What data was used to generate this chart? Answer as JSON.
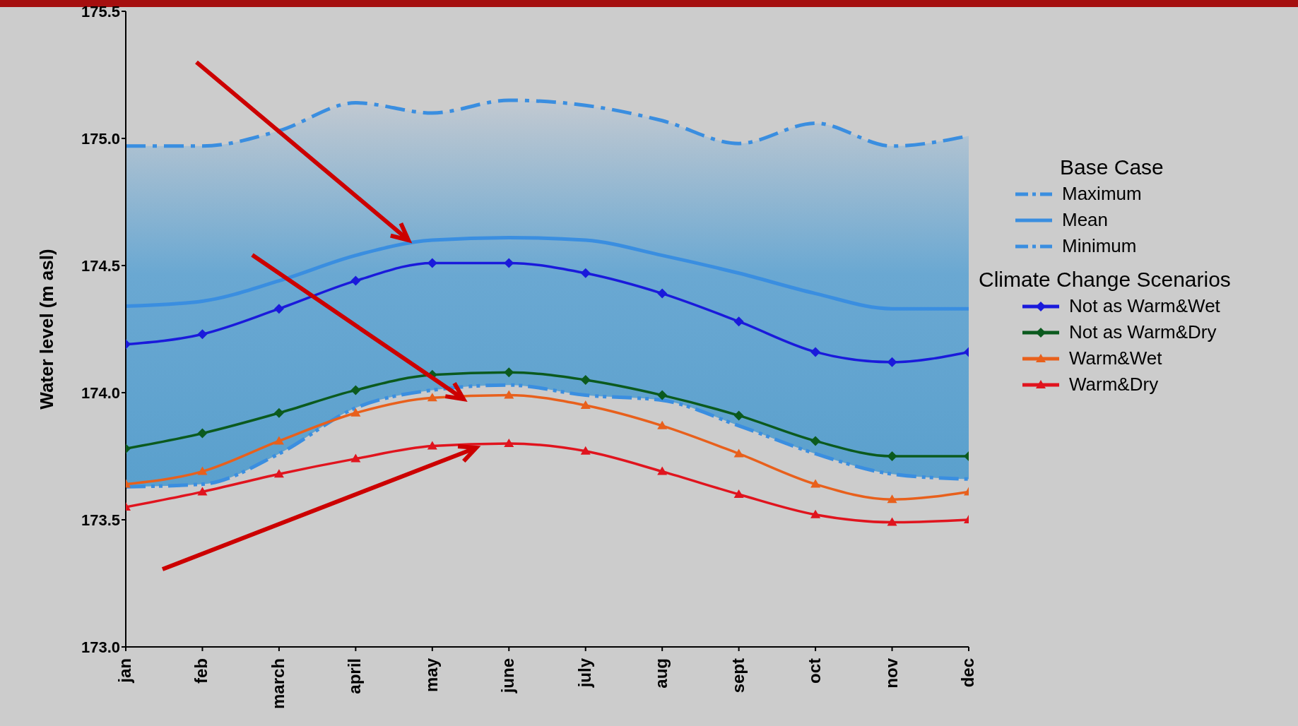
{
  "chart_data": {
    "type": "line",
    "ylabel": "Water level (m asl)",
    "legend_title": "Base Case",
    "annotations": [
      "Climate Change Scenarios"
    ],
    "categories": [
      "jan",
      "feb",
      "march",
      "april",
      "may",
      "june",
      "july",
      "aug",
      "sept",
      "oct",
      "nov",
      "dec"
    ],
    "ylim": [
      173,
      175.5
    ],
    "yticks": [
      {
        "value": 173,
        "label": "173.0"
      },
      {
        "value": 173.5,
        "label": "173.5"
      },
      {
        "value": 174,
        "label": "174.0"
      },
      {
        "value": 174.5,
        "label": "174.5"
      },
      {
        "value": 175,
        "label": "175.0"
      },
      {
        "value": 175.5,
        "label": "175.5"
      }
    ],
    "legend": "right",
    "series": [
      {
        "name": "Maximum",
        "color": "#3a8ee0",
        "marker": "none",
        "line_style": "dashed",
        "values": [
          174.97,
          174.97,
          175.03,
          175.14,
          175.1,
          175.15,
          175.13,
          175.07,
          174.98,
          175.06,
          174.97,
          175.01
        ]
      },
      {
        "name": "Mean",
        "color": "#3a8ee0",
        "marker": "none",
        "line_style": "solid",
        "values": [
          174.34,
          174.36,
          174.44,
          174.54,
          174.6,
          174.61,
          174.6,
          174.54,
          174.47,
          174.39,
          174.33,
          174.33
        ],
        "lower": [
          173.63,
          173.64,
          173.76,
          173.94,
          174.01,
          174.03,
          173.99,
          173.97,
          173.87,
          173.76,
          173.68,
          173.66
        ],
        "upper": [
          174.97,
          174.97,
          175.03,
          175.14,
          175.1,
          175.15,
          175.13,
          175.07,
          174.98,
          175.06,
          174.97,
          175.01
        ]
      },
      {
        "name": "Minimum",
        "color": "#3a8ee0",
        "marker": "none",
        "line_style": "dashed",
        "values": [
          173.63,
          173.64,
          173.76,
          173.94,
          174.01,
          174.03,
          173.99,
          173.97,
          173.87,
          173.76,
          173.68,
          173.66
        ]
      },
      {
        "name": "Not as Warm&Wet",
        "color": "#1a1adb",
        "marker": "diamond",
        "line_style": "solid",
        "values": [
          174.19,
          174.23,
          174.33,
          174.44,
          174.51,
          174.51,
          174.47,
          174.39,
          174.28,
          174.16,
          174.12,
          174.16
        ]
      },
      {
        "name": "Not as Warm&Dry",
        "color": "#0b5a1e",
        "marker": "diamond",
        "line_style": "solid",
        "values": [
          173.78,
          173.84,
          173.92,
          174.01,
          174.07,
          174.08,
          174.05,
          173.99,
          173.91,
          173.81,
          173.75,
          173.75
        ]
      },
      {
        "name": "Warm&Wet",
        "color": "#e8601c",
        "marker": "triangle",
        "line_style": "solid",
        "values": [
          173.64,
          173.69,
          173.81,
          173.92,
          173.98,
          173.99,
          173.95,
          173.87,
          173.76,
          173.64,
          173.58,
          173.61
        ]
      },
      {
        "name": "Warm&Dry",
        "color": "#e0141e",
        "marker": "triangle",
        "line_style": "solid",
        "values": [
          173.55,
          173.61,
          173.68,
          173.74,
          173.79,
          173.8,
          173.77,
          173.69,
          173.6,
          173.52,
          173.49,
          173.5
        ]
      }
    ]
  }
}
